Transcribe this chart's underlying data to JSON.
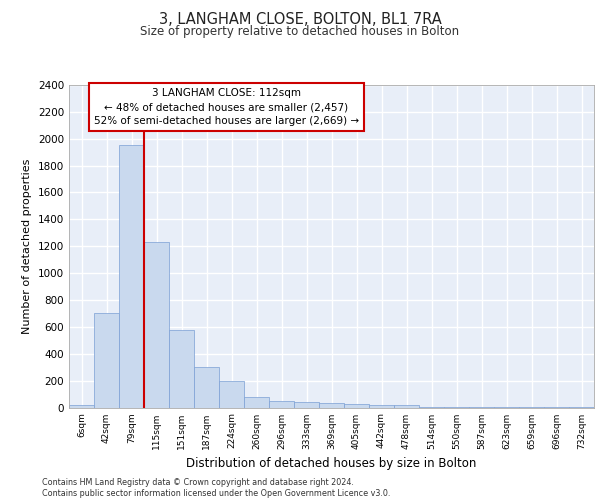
{
  "title1": "3, LANGHAM CLOSE, BOLTON, BL1 7RA",
  "title2": "Size of property relative to detached houses in Bolton",
  "xlabel": "Distribution of detached houses by size in Bolton",
  "ylabel": "Number of detached properties",
  "bar_labels": [
    "6sqm",
    "42sqm",
    "79sqm",
    "115sqm",
    "151sqm",
    "187sqm",
    "224sqm",
    "260sqm",
    "296sqm",
    "333sqm",
    "369sqm",
    "405sqm",
    "442sqm",
    "478sqm",
    "514sqm",
    "550sqm",
    "587sqm",
    "623sqm",
    "659sqm",
    "696sqm",
    "732sqm"
  ],
  "bar_heights": [
    15,
    700,
    1950,
    1230,
    575,
    305,
    200,
    80,
    47,
    40,
    35,
    28,
    20,
    15,
    5,
    5,
    5,
    5,
    5,
    5,
    5
  ],
  "bar_color": "#c9d9ee",
  "bar_edge_color": "#7a9fd4",
  "vline_color": "#cc0000",
  "vline_pos": 2.5,
  "annotation_text": "3 LANGHAM CLOSE: 112sqm\n← 48% of detached houses are smaller (2,457)\n52% of semi-detached houses are larger (2,669) →",
  "annotation_box_color": "#cc0000",
  "ylim": [
    0,
    2400
  ],
  "yticks": [
    0,
    200,
    400,
    600,
    800,
    1000,
    1200,
    1400,
    1600,
    1800,
    2000,
    2200,
    2400
  ],
  "bg_color": "#e8eef8",
  "grid_color": "#ffffff",
  "footer1": "Contains HM Land Registry data © Crown copyright and database right 2024.",
  "footer2": "Contains public sector information licensed under the Open Government Licence v3.0."
}
